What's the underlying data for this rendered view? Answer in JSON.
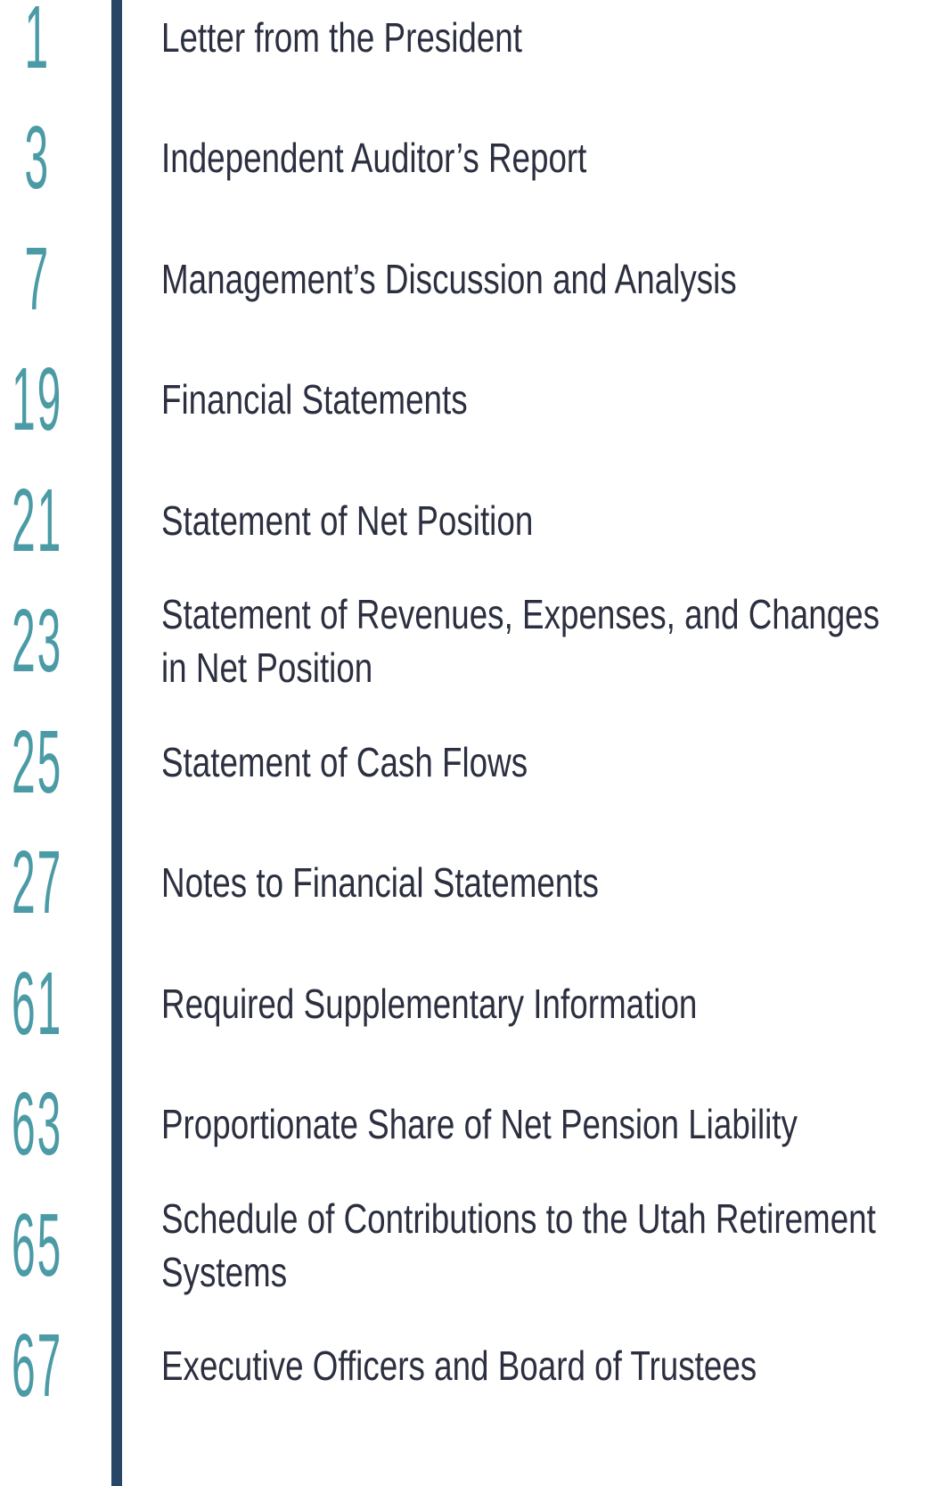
{
  "entries": [
    {
      "page": "1",
      "title": "Letter from the President"
    },
    {
      "page": "3",
      "title": "Independent Auditor’s Report"
    },
    {
      "page": "7",
      "title": "Management’s Discussion and Analysis"
    },
    {
      "page": "19",
      "title": "Financial Statements"
    },
    {
      "page": "21",
      "title": "Statement of Net Position"
    },
    {
      "page": "23",
      "title": "Statement of Revenues, Expenses, and Changes in Net Position"
    },
    {
      "page": "25",
      "title": "Statement of Cash Flows"
    },
    {
      "page": "27",
      "title": "Notes to Financial Statements"
    },
    {
      "page": "61",
      "title": "Required Supplementary Information"
    },
    {
      "page": "63",
      "title": "Proportionate Share of Net Pension Liability"
    },
    {
      "page": "65",
      "title": "Schedule of Contributions to the Utah Retirement Systems"
    },
    {
      "page": "67",
      "title": "Executive Officers and Board of Trustees"
    }
  ]
}
